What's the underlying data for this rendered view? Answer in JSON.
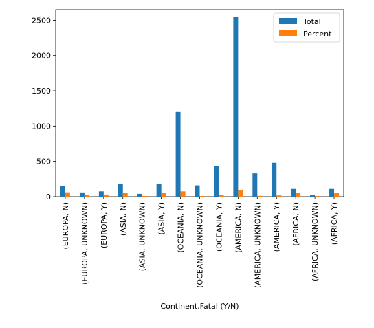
{
  "chart_data": {
    "type": "bar",
    "title": "",
    "xlabel": "Continent,Fatal (Y/N)",
    "ylabel": "",
    "ylim": [
      0,
      2650
    ],
    "yticks": [
      0,
      500,
      1000,
      1500,
      2000,
      2500
    ],
    "categories": [
      "(EUROPA, N)",
      "(EUROPA, UNKNOWN)",
      "(EUROPA, Y)",
      "(ASIA, N)",
      "(ASIA, UNKNOWN)",
      "(ASIA, Y)",
      "(OCEANIA, N)",
      "(OCEANIA, UNKNOWN)",
      "(OCEANIA, Y)",
      "(AMERICA, N)",
      "(AMERICA, UNKNOWN)",
      "(AMERICA, Y)",
      "(AFRICA, N)",
      "(AFRICA, UNKNOWN)",
      "(AFRICA, Y)"
    ],
    "series": [
      {
        "name": "Total",
        "color": "#1f77b4",
        "values": [
          150,
          60,
          75,
          185,
          40,
          185,
          1200,
          160,
          430,
          2550,
          330,
          480,
          110,
          25,
          110
        ]
      },
      {
        "name": "Percent",
        "color": "#ff7f0e",
        "values": [
          62,
          25,
          30,
          50,
          10,
          50,
          75,
          10,
          28,
          88,
          12,
          18,
          50,
          10,
          50
        ]
      }
    ],
    "grid": false,
    "legend_position": "top-right"
  }
}
